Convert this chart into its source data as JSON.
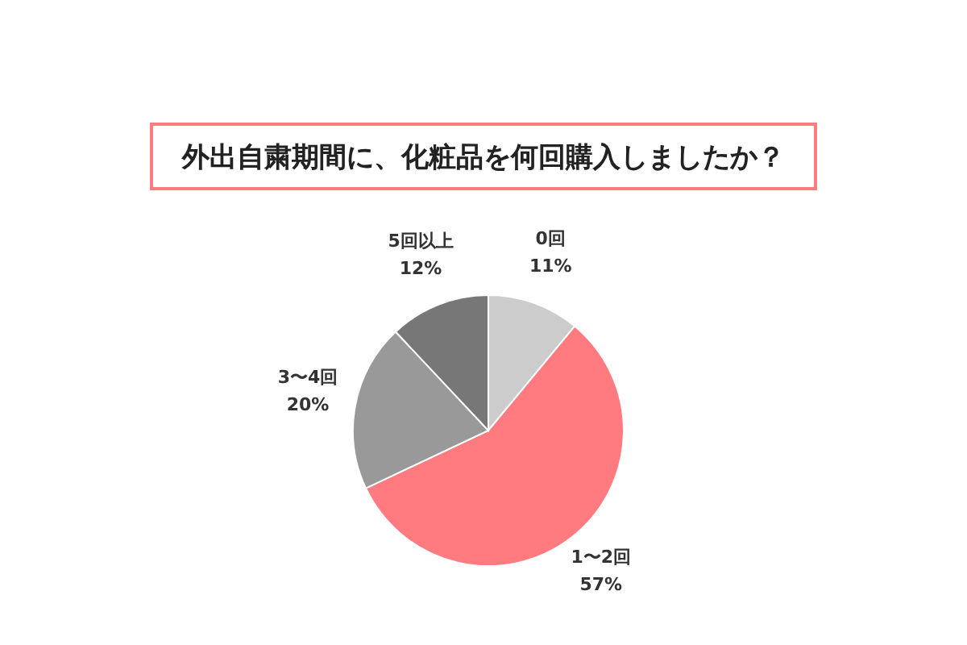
{
  "chart_data": {
    "type": "pie",
    "title": "外出自粛期間に、化粧品を何回購入しましたか？",
    "categories": [
      "0回",
      "1〜2回",
      "3〜4回",
      "5回以上"
    ],
    "values": [
      11,
      57,
      20,
      12
    ],
    "colors": [
      "#cccccc",
      "#ff7b80",
      "#999999",
      "#777777"
    ],
    "value_labels": [
      "11%",
      "57%",
      "20%",
      "12%"
    ],
    "legend": false
  }
}
